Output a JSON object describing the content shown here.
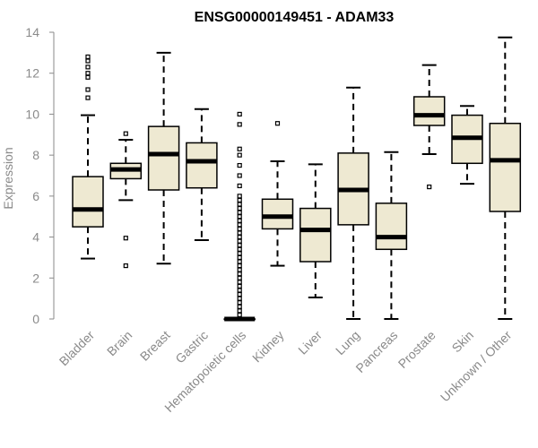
{
  "chart_data": {
    "type": "boxplot",
    "title": "ENSG00000149451 - ADAM33",
    "ylabel": "Expression",
    "xlabel": "",
    "ylim": [
      0,
      14
    ],
    "yticks": [
      0,
      2,
      4,
      6,
      8,
      10,
      12,
      14
    ],
    "colors": {
      "box_fill": "#eee9d2",
      "stroke": "#000000",
      "axis": "#8a8a8a"
    },
    "categories": [
      "Bladder",
      "Brain",
      "Breast",
      "Gastric",
      "Hematopoietic cells",
      "Kidney",
      "Liver",
      "Lung",
      "Pancreas",
      "Prostate",
      "Skin",
      "Unknown / Other"
    ],
    "boxes": [
      {
        "name": "Bladder",
        "whisker_low": 2.95,
        "q1": 4.5,
        "median": 5.35,
        "q3": 6.95,
        "whisker_high": 9.95,
        "outliers": [
          10.8,
          11.2,
          11.8,
          12.0,
          12.3,
          12.6,
          12.8
        ]
      },
      {
        "name": "Brain",
        "whisker_low": 5.8,
        "q1": 6.85,
        "median": 7.3,
        "q3": 7.6,
        "whisker_high": 8.75,
        "outliers": [
          2.6,
          3.95,
          9.05
        ]
      },
      {
        "name": "Breast",
        "whisker_low": 2.7,
        "q1": 6.3,
        "median": 8.05,
        "q3": 9.4,
        "whisker_high": 13.0,
        "outliers": []
      },
      {
        "name": "Gastric",
        "whisker_low": 3.85,
        "q1": 6.4,
        "median": 7.7,
        "q3": 8.6,
        "whisker_high": 10.25,
        "outliers": []
      },
      {
        "name": "Hematopoietic cells",
        "whisker_low": 0.0,
        "q1": 0.0,
        "median": 0.0,
        "q3": 0.0,
        "whisker_high": 0.0,
        "outliers": [
          0.2,
          0.4,
          0.6,
          0.8,
          1.0,
          1.2,
          1.4,
          1.6,
          1.8,
          2.0,
          2.2,
          2.4,
          2.6,
          2.8,
          3.0,
          3.2,
          3.4,
          3.6,
          3.8,
          4.0,
          4.2,
          4.4,
          4.6,
          4.8,
          5.0,
          5.2,
          5.4,
          5.6,
          5.8,
          6.0,
          6.5,
          7.0,
          7.5,
          8.0,
          8.3,
          9.5,
          10.0
        ]
      },
      {
        "name": "Kidney",
        "whisker_low": 2.6,
        "q1": 4.4,
        "median": 5.0,
        "q3": 5.85,
        "whisker_high": 7.7,
        "outliers": [
          9.55
        ]
      },
      {
        "name": "Liver",
        "whisker_low": 1.05,
        "q1": 2.8,
        "median": 4.35,
        "q3": 5.4,
        "whisker_high": 7.55,
        "outliers": []
      },
      {
        "name": "Lung",
        "whisker_low": 0.0,
        "q1": 4.6,
        "median": 6.3,
        "q3": 8.1,
        "whisker_high": 11.3,
        "outliers": []
      },
      {
        "name": "Pancreas",
        "whisker_low": 0.0,
        "q1": 3.4,
        "median": 4.0,
        "q3": 5.65,
        "whisker_high": 8.15,
        "outliers": []
      },
      {
        "name": "Prostate",
        "whisker_low": 8.05,
        "q1": 9.45,
        "median": 9.95,
        "q3": 10.85,
        "whisker_high": 12.4,
        "outliers": [
          6.45
        ]
      },
      {
        "name": "Skin",
        "whisker_low": 6.6,
        "q1": 7.6,
        "median": 8.85,
        "q3": 9.95,
        "whisker_high": 10.4,
        "outliers": []
      },
      {
        "name": "Unknown / Other",
        "whisker_low": 0.0,
        "q1": 5.25,
        "median": 7.75,
        "q3": 9.55,
        "whisker_high": 13.75,
        "outliers": []
      }
    ]
  }
}
